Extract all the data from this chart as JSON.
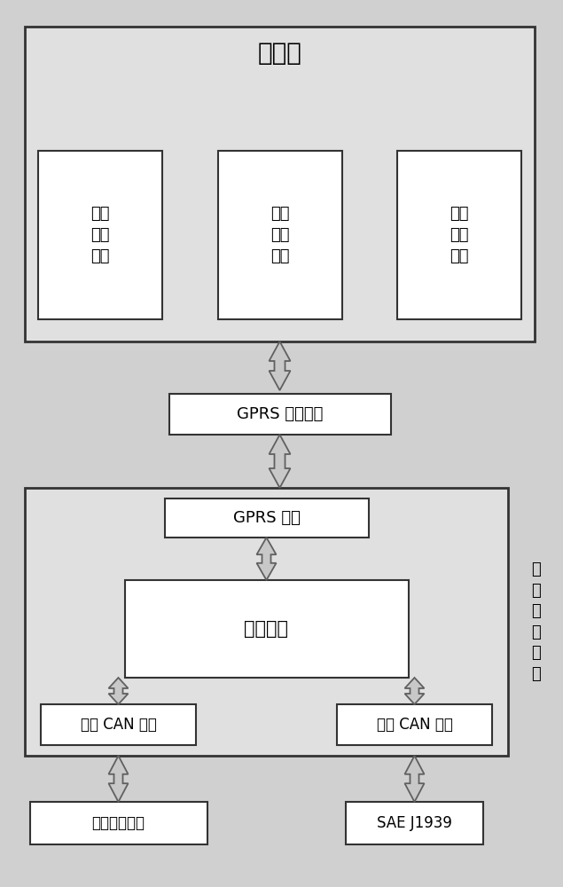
{
  "bg_color": "#d0d0d0",
  "box_color": "#ffffff",
  "large_box_color": "#e0e0e0",
  "title_upper": "上位机",
  "sub_boxes": [
    "实时\n数据\n显示",
    "智能\n处理\n算法",
    "历史\n数据\n存储"
  ],
  "gprs_wireless": "GPRS 无线网络",
  "gprs_module": "GPRS 模块",
  "control_unit": "控制单元",
  "inner_can": "内部 CAN 接口",
  "outer_can": "外部 CAN 接口",
  "battery_mgmt": "电池管理系统",
  "sae": "SAE J1939",
  "side_label": "数\n据\n采\n集\n终\n端",
  "font_size_title": 20,
  "font_size_label": 13,
  "font_size_sub": 13,
  "font_size_side": 13,
  "arrow_fill": "#c8c8c8",
  "arrow_edge": "#606060"
}
